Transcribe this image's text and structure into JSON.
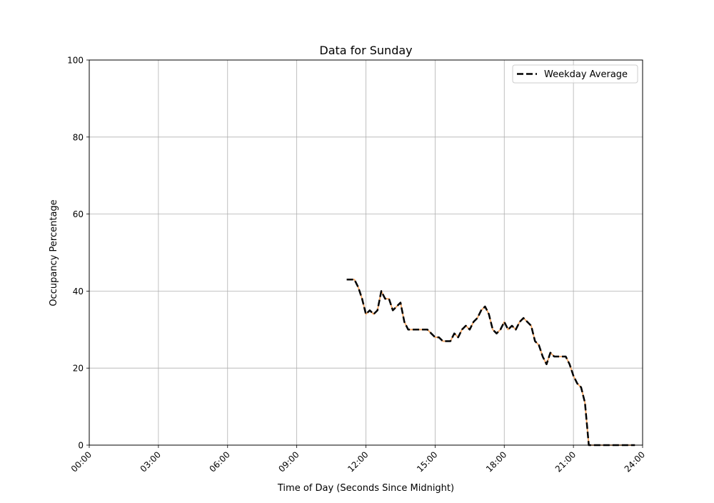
{
  "chart_data": {
    "type": "line",
    "title": "Data for Sunday",
    "xlabel": "Time of Day (Seconds Since Midnight)",
    "ylabel": "Occupancy Percentage",
    "xlim": [
      0,
      86400
    ],
    "ylim": [
      0,
      100
    ],
    "x_ticks": [
      {
        "value": 0,
        "label": "00:00"
      },
      {
        "value": 10800,
        "label": "03:00"
      },
      {
        "value": 21600,
        "label": "06:00"
      },
      {
        "value": 32400,
        "label": "09:00"
      },
      {
        "value": 43200,
        "label": "12:00"
      },
      {
        "value": 54000,
        "label": "15:00"
      },
      {
        "value": 64800,
        "label": "18:00"
      },
      {
        "value": 75600,
        "label": "21:00"
      },
      {
        "value": 86400,
        "label": "24:00"
      }
    ],
    "y_ticks": [
      {
        "value": 0,
        "label": "0"
      },
      {
        "value": 20,
        "label": "20"
      },
      {
        "value": 40,
        "label": "40"
      },
      {
        "value": 60,
        "label": "60"
      },
      {
        "value": 80,
        "label": "80"
      },
      {
        "value": 100,
        "label": "100"
      }
    ],
    "grid": true,
    "legend": {
      "position": "top-right",
      "entries": [
        "Weekday Average"
      ]
    },
    "series": [
      {
        "color": "#f4a460",
        "style": "solid",
        "x": [
          40200,
          40800,
          41400,
          42000,
          42600,
          43200,
          43800,
          44400,
          45000,
          45600,
          46200,
          46800,
          47400,
          48000,
          48600,
          49200,
          49800,
          50400,
          51000,
          51600,
          52200,
          52800,
          53400,
          54000,
          54600,
          55200,
          55800,
          56400,
          57000,
          57600,
          58200,
          58800,
          59400,
          60000,
          60600,
          61200,
          61800,
          62400,
          63000,
          63600,
          64200,
          64800,
          65400,
          66000,
          66600,
          67200,
          67800,
          68400,
          69000,
          69600,
          70200,
          70800,
          71400,
          72000,
          72600,
          73200,
          73800,
          74400,
          75000,
          75600,
          76200,
          76800,
          77400,
          78000,
          78600,
          79200,
          79800,
          80400,
          81000,
          81600,
          82200,
          82800,
          83400,
          84000,
          84600,
          85200
        ],
        "values": [
          43,
          43,
          43,
          41,
          38,
          34,
          35,
          34,
          35,
          40,
          38,
          38,
          35,
          36,
          37,
          32,
          30,
          30,
          30,
          30,
          30,
          30,
          29,
          28,
          28,
          27,
          27,
          27,
          29,
          28,
          30,
          31,
          30,
          32,
          33,
          35,
          36,
          34,
          30,
          29,
          30,
          32,
          30,
          31,
          30,
          32,
          33,
          32,
          31,
          27,
          26,
          23,
          21,
          24,
          23,
          23,
          23,
          23,
          21,
          18,
          16,
          15,
          11,
          0,
          0,
          0,
          0,
          0,
          0,
          0,
          0,
          0,
          0,
          0,
          0,
          0
        ]
      },
      {
        "name": "Weekday Average",
        "color": "#000000",
        "style": "dashed",
        "x": [
          40200,
          40800,
          41400,
          42000,
          42600,
          43200,
          43800,
          44400,
          45000,
          45600,
          46200,
          46800,
          47400,
          48000,
          48600,
          49200,
          49800,
          50400,
          51000,
          51600,
          52200,
          52800,
          53400,
          54000,
          54600,
          55200,
          55800,
          56400,
          57000,
          57600,
          58200,
          58800,
          59400,
          60000,
          60600,
          61200,
          61800,
          62400,
          63000,
          63600,
          64200,
          64800,
          65400,
          66000,
          66600,
          67200,
          67800,
          68400,
          69000,
          69600,
          70200,
          70800,
          71400,
          72000,
          72600,
          73200,
          73800,
          74400,
          75000,
          75600,
          76200,
          76800,
          77400,
          78000,
          78600,
          79200,
          79800,
          80400,
          81000,
          81600,
          82200,
          82800,
          83400,
          84000,
          84600,
          85200
        ],
        "values": [
          43,
          43,
          43,
          41,
          38,
          34,
          35,
          34,
          35,
          40,
          38,
          38,
          35,
          36,
          37,
          32,
          30,
          30,
          30,
          30,
          30,
          30,
          29,
          28,
          28,
          27,
          27,
          27,
          29,
          28,
          30,
          31,
          30,
          32,
          33,
          35,
          36,
          34,
          30,
          29,
          30,
          32,
          30,
          31,
          30,
          32,
          33,
          32,
          31,
          27,
          26,
          23,
          21,
          24,
          23,
          23,
          23,
          23,
          21,
          18,
          16,
          15,
          11,
          0,
          0,
          0,
          0,
          0,
          0,
          0,
          0,
          0,
          0,
          0,
          0,
          0
        ]
      }
    ]
  }
}
